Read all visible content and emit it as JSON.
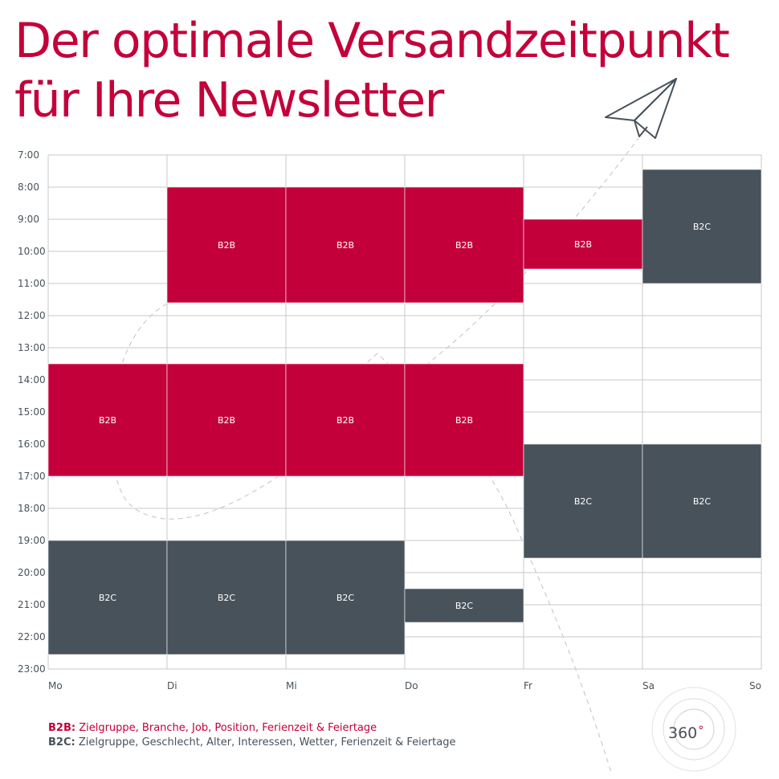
{
  "title_lines": [
    "Der optimale Versandzeitpunkt",
    "für Ihre Newsletter"
  ],
  "colors": {
    "b2b": "#c4003a",
    "b2c": "#48525a",
    "title": "#c4003a",
    "grid": "#c9c9c9"
  },
  "chart_data": {
    "type": "heatmap",
    "days": [
      "Mo",
      "Di",
      "Mi",
      "Do",
      "Fr",
      "Sa",
      "So"
    ],
    "hours": [
      "7:00",
      "8:00",
      "9:00",
      "10:00",
      "11:00",
      "12:00",
      "13:00",
      "14:00",
      "15:00",
      "16:00",
      "17:00",
      "18:00",
      "19:00",
      "20:00",
      "21:00",
      "22:00",
      "23:00"
    ],
    "ylim": [
      7,
      23
    ],
    "blocks": [
      {
        "day": 1,
        "start": 8.0,
        "end": 11.6,
        "label": "B2B",
        "group": "b2b"
      },
      {
        "day": 2,
        "start": 8.0,
        "end": 11.6,
        "label": "B2B",
        "group": "b2b"
      },
      {
        "day": 3,
        "start": 8.0,
        "end": 11.6,
        "label": "B2B",
        "group": "b2b"
      },
      {
        "day": 4,
        "start": 9.0,
        "end": 10.55,
        "label": "B2B",
        "group": "b2b"
      },
      {
        "day": 5,
        "start": 7.45,
        "end": 11.0,
        "label": "B2C",
        "group": "b2c"
      },
      {
        "day": 0,
        "start": 13.5,
        "end": 17.0,
        "label": "B2B",
        "group": "b2b"
      },
      {
        "day": 1,
        "start": 13.5,
        "end": 17.0,
        "label": "B2B",
        "group": "b2b"
      },
      {
        "day": 2,
        "start": 13.5,
        "end": 17.0,
        "label": "B2B",
        "group": "b2b"
      },
      {
        "day": 3,
        "start": 13.5,
        "end": 17.0,
        "label": "B2B",
        "group": "b2b"
      },
      {
        "day": 4,
        "start": 16.0,
        "end": 19.55,
        "label": "B2C",
        "group": "b2c"
      },
      {
        "day": 5,
        "start": 16.0,
        "end": 19.55,
        "label": "B2C",
        "group": "b2c"
      },
      {
        "day": 0,
        "start": 19.0,
        "end": 22.55,
        "label": "B2C",
        "group": "b2c"
      },
      {
        "day": 1,
        "start": 19.0,
        "end": 22.55,
        "label": "B2C",
        "group": "b2c"
      },
      {
        "day": 2,
        "start": 19.0,
        "end": 22.55,
        "label": "B2C",
        "group": "b2c"
      },
      {
        "day": 3,
        "start": 20.5,
        "end": 21.55,
        "label": "B2C",
        "group": "b2c"
      }
    ]
  },
  "legend": {
    "b2b_key": "B2B:",
    "b2b_text": " Zielgruppe, Branche, Job, Position, Ferienzeit & Feiertage",
    "b2c_key": "B2C:",
    "b2c_text": " Zielgruppe, Geschlecht, Alter, Interessen, Wetter, Ferienzeit & Feiertage"
  },
  "logo": {
    "text": "360",
    "degree": "°"
  }
}
